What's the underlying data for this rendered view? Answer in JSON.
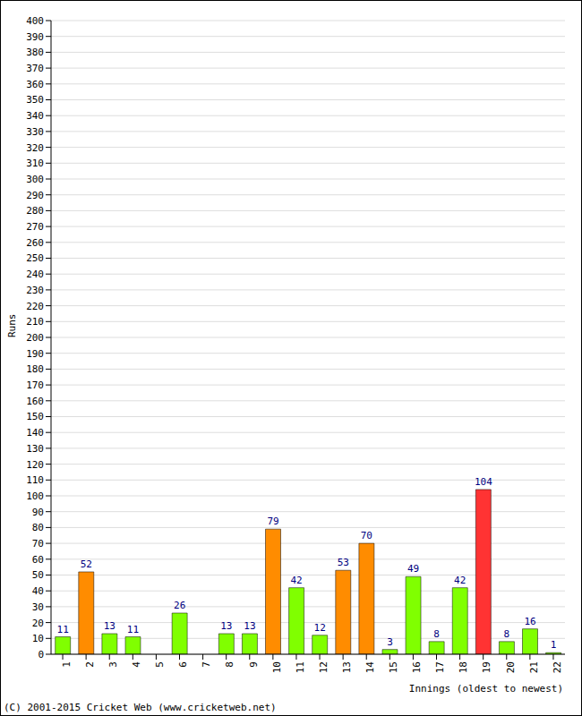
{
  "chart_data": {
    "type": "bar",
    "footer": "(C) 2001-2015 Cricket Web (www.cricketweb.net)",
    "x_label": "Innings (oldest to newest)",
    "y_label": "Runs",
    "categories": [
      "1",
      "2",
      "3",
      "4",
      "5",
      "6",
      "7",
      "8",
      "9",
      "10",
      "11",
      "12",
      "13",
      "14",
      "15",
      "16",
      "17",
      "18",
      "19",
      "20",
      "21",
      "22"
    ],
    "values": [
      11,
      52,
      13,
      11,
      0,
      26,
      0,
      13,
      13,
      79,
      42,
      12,
      53,
      70,
      3,
      49,
      8,
      42,
      104,
      8,
      16,
      1
    ],
    "colors": [
      "#80ff00",
      "#ff8c00",
      "#80ff00",
      "#80ff00",
      "#80ff00",
      "#80ff00",
      "#80ff00",
      "#80ff00",
      "#80ff00",
      "#ff8c00",
      "#80ff00",
      "#80ff00",
      "#ff8c00",
      "#ff8c00",
      "#80ff00",
      "#80ff00",
      "#80ff00",
      "#80ff00",
      "#ff3333",
      "#80ff00",
      "#80ff00",
      "#80ff00"
    ],
    "ylim": [
      0,
      400
    ],
    "yticks": [
      0,
      10,
      20,
      30,
      40,
      50,
      60,
      70,
      80,
      90,
      100,
      110,
      120,
      130,
      140,
      150,
      160,
      170,
      180,
      190,
      200,
      210,
      220,
      230,
      240,
      250,
      260,
      270,
      280,
      290,
      300,
      310,
      320,
      330,
      340,
      350,
      360,
      370,
      380,
      390,
      400
    ],
    "grid": true,
    "data_labels": true
  }
}
